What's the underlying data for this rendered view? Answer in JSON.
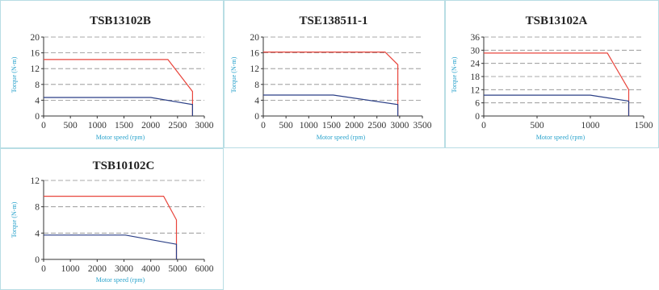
{
  "colors": {
    "peak": "#e8453c",
    "continuous": "#2b3f86",
    "grid": "#8c8c8c",
    "axis_label": "#2aa3cc",
    "border": "#b8dde4"
  },
  "chart_data": [
    {
      "type": "line",
      "title": "TSB13102B",
      "xlabel": "Motor speed (rpm)",
      "ylabel": "Torque (N-m)",
      "xlim": [
        0,
        3000
      ],
      "ylim": [
        0,
        20
      ],
      "xticks": [
        0,
        500,
        1000,
        1500,
        2000,
        2500,
        3000
      ],
      "yticks": [
        0,
        4,
        8,
        12,
        16,
        20
      ],
      "grid": "dashed horizontal",
      "series": [
        {
          "color": "#e8453c",
          "x": [
            0,
            2320,
            2780,
            2780
          ],
          "y": [
            14.3,
            14.3,
            6.2,
            0
          ]
        },
        {
          "color": "#2b3f86",
          "x": [
            0,
            2000,
            2780,
            2780
          ],
          "y": [
            4.7,
            4.7,
            2.9,
            0
          ]
        }
      ]
    },
    {
      "type": "line",
      "title": "TSE138511-1",
      "xlabel": "Motor speed (rpm)",
      "ylabel": "Torque (N-m)",
      "xlim": [
        0,
        3500
      ],
      "ylim": [
        0,
        20
      ],
      "xticks": [
        0,
        500,
        1000,
        1500,
        2000,
        2500,
        3000,
        3500
      ],
      "yticks": [
        0,
        4,
        8,
        12,
        16,
        20
      ],
      "grid": "dashed horizontal",
      "series": [
        {
          "color": "#e8453c",
          "x": [
            0,
            2680,
            2960,
            2960
          ],
          "y": [
            16.2,
            16.2,
            13,
            0
          ]
        },
        {
          "color": "#2b3f86",
          "x": [
            0,
            1540,
            2960,
            2960
          ],
          "y": [
            5.3,
            5.3,
            2.9,
            0
          ]
        }
      ]
    },
    {
      "type": "line",
      "title": "TSB13102A",
      "xlabel": "Motor speed (rpm)",
      "ylabel": "Torque (N-m)",
      "xlim": [
        0,
        1500
      ],
      "ylim": [
        0,
        36
      ],
      "xticks": [
        0,
        500,
        1000,
        1500
      ],
      "yticks": [
        0,
        6,
        12,
        18,
        24,
        30,
        36
      ],
      "grid": "dashed horizontal",
      "series": [
        {
          "color": "#e8453c",
          "x": [
            0,
            1160,
            1360,
            1360
          ],
          "y": [
            28.7,
            28.7,
            12,
            0
          ]
        },
        {
          "color": "#2b3f86",
          "x": [
            0,
            1000,
            1360,
            1360
          ],
          "y": [
            9.5,
            9.5,
            6.8,
            0
          ]
        }
      ]
    },
    {
      "type": "line",
      "title": "TSB10102C",
      "xlabel": "Motor speed (rpm)",
      "ylabel": "Torque (N-m)",
      "xlim": [
        0,
        6000
      ],
      "ylim": [
        0,
        12
      ],
      "xticks": [
        0,
        1000,
        2000,
        3000,
        4000,
        5000,
        6000
      ],
      "yticks": [
        0,
        4,
        8,
        12
      ],
      "grid": "dashed horizontal",
      "series": [
        {
          "color": "#e8453c",
          "x": [
            0,
            4480,
            4960,
            4960
          ],
          "y": [
            9.6,
            9.6,
            6,
            0
          ]
        },
        {
          "color": "#2b3f86",
          "x": [
            0,
            3050,
            4960,
            4960
          ],
          "y": [
            3.7,
            3.7,
            2.3,
            0
          ]
        }
      ]
    }
  ]
}
